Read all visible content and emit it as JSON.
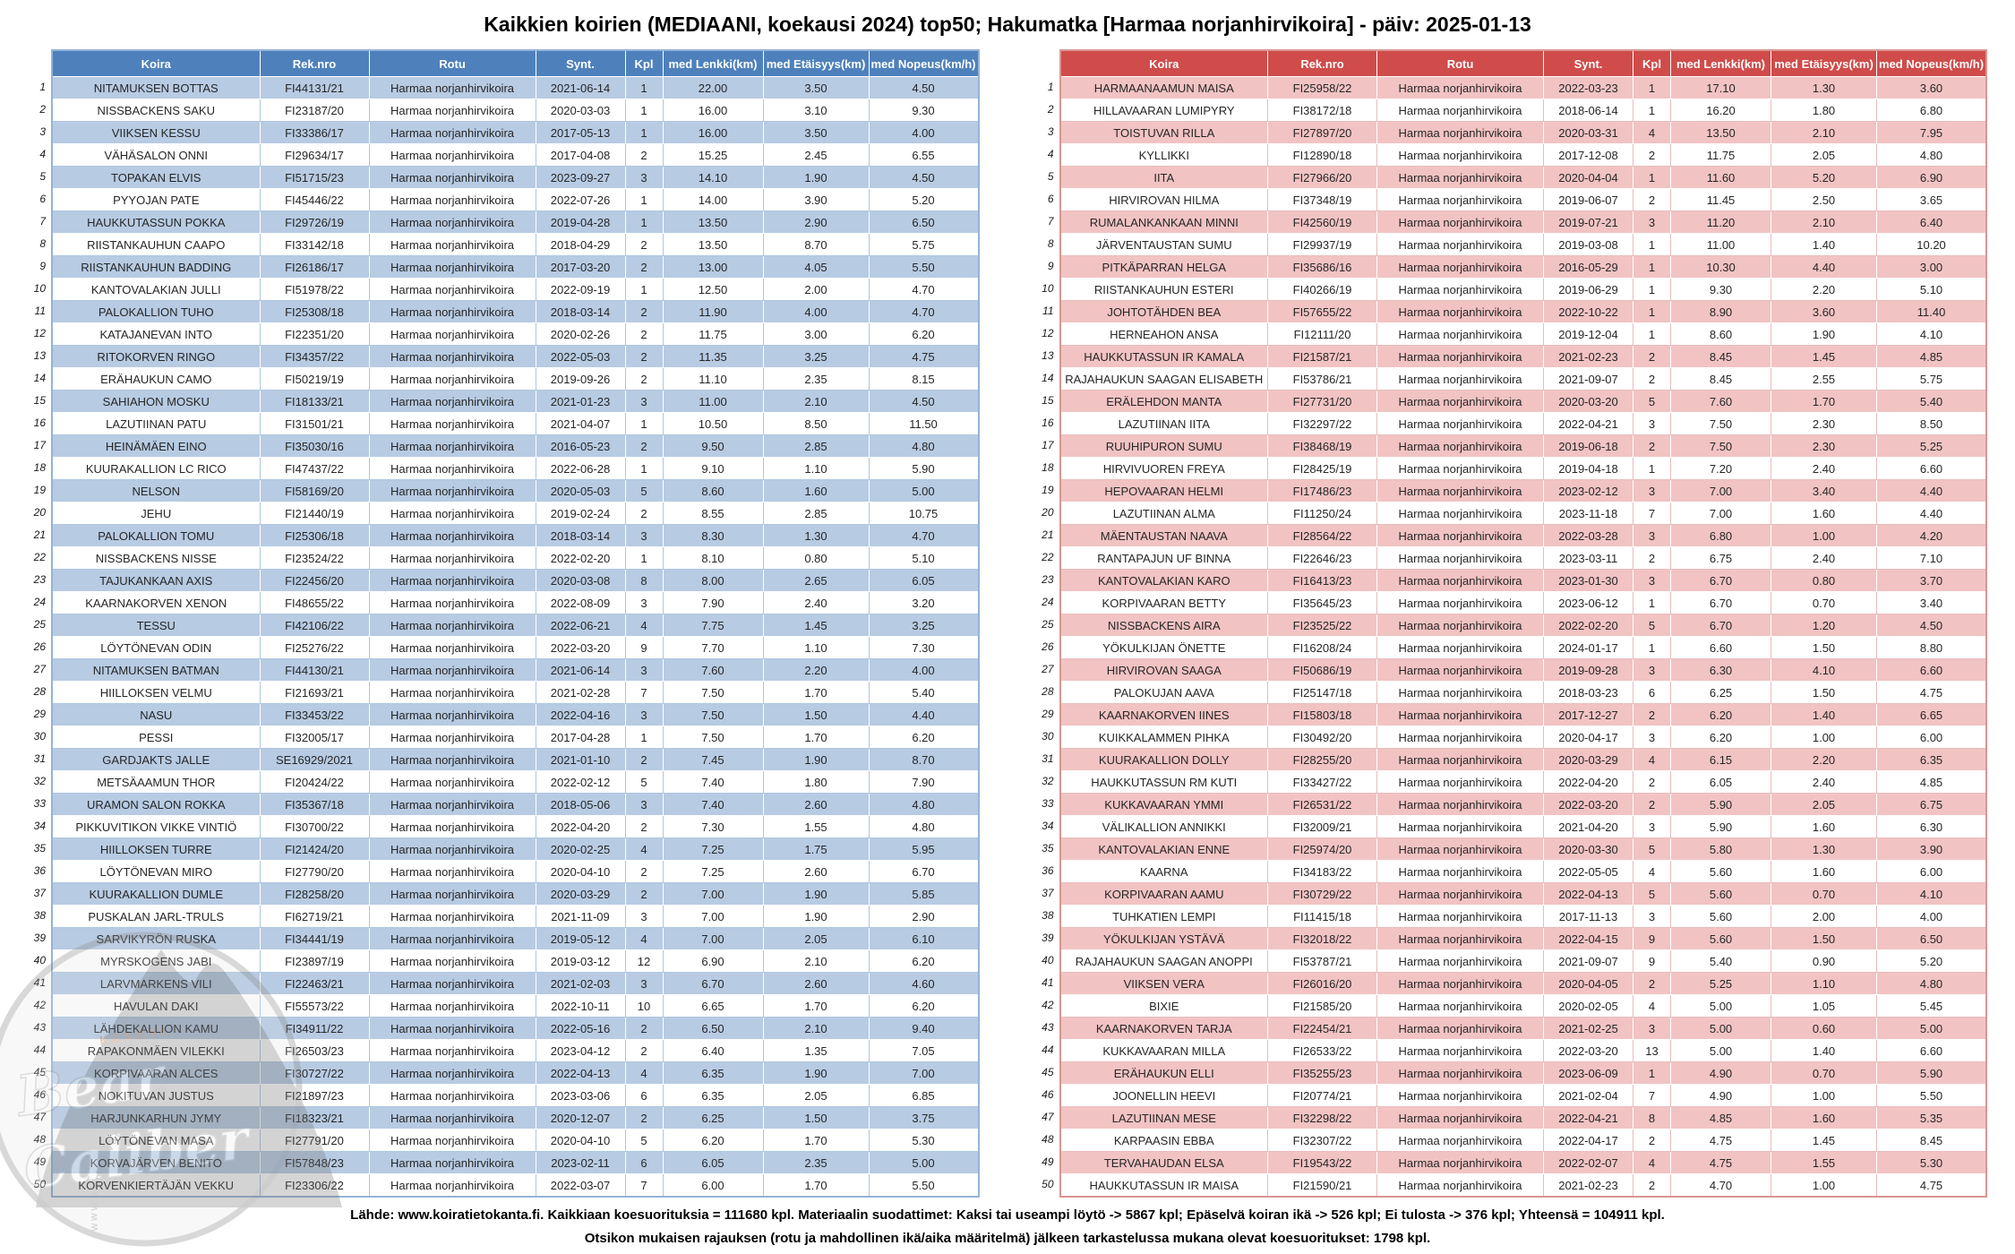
{
  "title": "Kaikkien koirien (MEDIAANI, koekausi 2024) top50; Hakumatka [Harmaa norjanhirvikoira] - päiv: 2025-01-13",
  "columns": [
    "Koira",
    "Rek.nro",
    "Rotu",
    "Synt.",
    "Kpl",
    "med Lenkki(km)",
    "med Etäisyys(km)",
    "med Nopeus(km/h)"
  ],
  "breed": "Harmaa norjanhirvikoira",
  "left_table": {
    "accent": "#4E81BC",
    "row_tint": "#B7CBE3",
    "rows": [
      [
        "NITAMUKSEN BOTTAS",
        "FI44131/21",
        "2021-06-14",
        "1",
        "22.00",
        "3.50",
        "4.50"
      ],
      [
        "NISSBACKENS SAKU",
        "FI23187/20",
        "2020-03-03",
        "1",
        "16.00",
        "3.10",
        "9.30"
      ],
      [
        "VIIKSEN KESSU",
        "FI33386/17",
        "2017-05-13",
        "1",
        "16.00",
        "3.50",
        "4.00"
      ],
      [
        "VÄHÄSALON ONNI",
        "FI29634/17",
        "2017-04-08",
        "2",
        "15.25",
        "2.45",
        "6.55"
      ],
      [
        "TOPAKAN ELVIS",
        "FI51715/23",
        "2023-09-27",
        "3",
        "14.10",
        "1.90",
        "4.50"
      ],
      [
        "PYYOJAN PATE",
        "FI45446/22",
        "2022-07-26",
        "1",
        "14.00",
        "3.90",
        "5.20"
      ],
      [
        "HAUKKUTASSUN POKKA",
        "FI29726/19",
        "2019-04-28",
        "1",
        "13.50",
        "2.90",
        "6.50"
      ],
      [
        "RIISTANKAUHUN CAAPO",
        "FI33142/18",
        "2018-04-29",
        "2",
        "13.50",
        "8.70",
        "5.75"
      ],
      [
        "RIISTANKAUHUN BADDING",
        "FI26186/17",
        "2017-03-20",
        "2",
        "13.00",
        "4.05",
        "5.50"
      ],
      [
        "KANTOVALAKIAN JULLI",
        "FI51978/22",
        "2022-09-19",
        "1",
        "12.50",
        "2.00",
        "4.70"
      ],
      [
        "PALOKALLION TUHO",
        "FI25308/18",
        "2018-03-14",
        "2",
        "11.90",
        "4.00",
        "4.70"
      ],
      [
        "KATAJANEVAN INTO",
        "FI22351/20",
        "2020-02-26",
        "2",
        "11.75",
        "3.00",
        "6.20"
      ],
      [
        "RITOKORVEN RINGO",
        "FI34357/22",
        "2022-05-03",
        "2",
        "11.35",
        "3.25",
        "4.75"
      ],
      [
        "ERÄHAUKUN CAMO",
        "FI50219/19",
        "2019-09-26",
        "2",
        "11.10",
        "2.35",
        "8.15"
      ],
      [
        "SAHIAHON MOSKU",
        "FI18133/21",
        "2021-01-23",
        "3",
        "11.00",
        "2.10",
        "4.50"
      ],
      [
        "LAZUTIINAN PATU",
        "FI31501/21",
        "2021-04-07",
        "1",
        "10.50",
        "8.50",
        "11.50"
      ],
      [
        "HEINÄMÄEN EINO",
        "FI35030/16",
        "2016-05-23",
        "2",
        "9.50",
        "2.85",
        "4.80"
      ],
      [
        "KUURAKALLION LC RICO",
        "FI47437/22",
        "2022-06-28",
        "1",
        "9.10",
        "1.10",
        "5.90"
      ],
      [
        "NELSON",
        "FI58169/20",
        "2020-05-03",
        "5",
        "8.60",
        "1.60",
        "5.00"
      ],
      [
        "JEHU",
        "FI21440/19",
        "2019-02-24",
        "2",
        "8.55",
        "2.85",
        "10.75"
      ],
      [
        "PALOKALLION TOMU",
        "FI25306/18",
        "2018-03-14",
        "3",
        "8.30",
        "1.30",
        "4.70"
      ],
      [
        "NISSBACKENS NISSE",
        "FI23524/22",
        "2022-02-20",
        "1",
        "8.10",
        "0.80",
        "5.10"
      ],
      [
        "TAJUKANKAAN AXIS",
        "FI22456/20",
        "2020-03-08",
        "8",
        "8.00",
        "2.65",
        "6.05"
      ],
      [
        "KAARNAKORVEN XENON",
        "FI48655/22",
        "2022-08-09",
        "3",
        "7.90",
        "2.40",
        "3.20"
      ],
      [
        "TESSU",
        "FI42106/22",
        "2022-06-21",
        "4",
        "7.75",
        "1.45",
        "3.25"
      ],
      [
        "LÖYTÖNEVAN ODIN",
        "FI25276/22",
        "2022-03-20",
        "9",
        "7.70",
        "1.10",
        "7.30"
      ],
      [
        "NITAMUKSEN BATMAN",
        "FI44130/21",
        "2021-06-14",
        "3",
        "7.60",
        "2.20",
        "4.00"
      ],
      [
        "HIILLOKSEN VELMU",
        "FI21693/21",
        "2021-02-28",
        "7",
        "7.50",
        "1.70",
        "5.40"
      ],
      [
        "NASU",
        "FI33453/22",
        "2022-04-16",
        "3",
        "7.50",
        "1.50",
        "4.40"
      ],
      [
        "PESSI",
        "FI32005/17",
        "2017-04-28",
        "1",
        "7.50",
        "1.70",
        "6.20"
      ],
      [
        "GARDJAKTS JALLE",
        "SE16929/2021",
        "2021-01-10",
        "2",
        "7.45",
        "1.90",
        "8.70"
      ],
      [
        "METSÄAAMUN THOR",
        "FI20424/22",
        "2022-02-12",
        "5",
        "7.40",
        "1.80",
        "7.90"
      ],
      [
        "URAMON SALON ROKKA",
        "FI35367/18",
        "2018-05-06",
        "3",
        "7.40",
        "2.60",
        "4.80"
      ],
      [
        "PIKKUVITIKON VIKKE VINTIÖ",
        "FI30700/22",
        "2022-04-20",
        "2",
        "7.30",
        "1.55",
        "4.80"
      ],
      [
        "HIILLOKSEN TURRE",
        "FI21424/20",
        "2020-02-25",
        "4",
        "7.25",
        "1.75",
        "5.95"
      ],
      [
        "LÖYTÖNEVAN MIRO",
        "FI27790/20",
        "2020-04-10",
        "2",
        "7.25",
        "2.60",
        "6.70"
      ],
      [
        "KUURAKALLION DUMLE",
        "FI28258/20",
        "2020-03-29",
        "2",
        "7.00",
        "1.90",
        "5.85"
      ],
      [
        "PUSKALAN JARL-TRULS",
        "FI62719/21",
        "2021-11-09",
        "3",
        "7.00",
        "1.90",
        "2.90"
      ],
      [
        "SARVIKYRÖN RUSKA",
        "FI34441/19",
        "2019-05-12",
        "4",
        "7.00",
        "2.05",
        "6.10"
      ],
      [
        "MYRSKOGENS JABI",
        "FI23897/19",
        "2019-03-12",
        "12",
        "6.90",
        "2.10",
        "6.20"
      ],
      [
        "LARVMARKENS VILI",
        "FI22463/21",
        "2021-02-03",
        "3",
        "6.70",
        "2.60",
        "4.60"
      ],
      [
        "HAVULAN DAKI",
        "FI55573/22",
        "2022-10-11",
        "10",
        "6.65",
        "1.70",
        "6.20"
      ],
      [
        "LÄHDEKALLION KAMU",
        "FI34911/22",
        "2022-05-16",
        "2",
        "6.50",
        "2.10",
        "9.40"
      ],
      [
        "RAPAKONMÄEN VILEKKI",
        "FI26503/23",
        "2023-04-12",
        "2",
        "6.40",
        "1.35",
        "7.05"
      ],
      [
        "KORPIVAARAN ALCES",
        "FI30727/22",
        "2022-04-13",
        "4",
        "6.35",
        "1.90",
        "7.00"
      ],
      [
        "NOKITUVAN JUSTUS",
        "FI21897/23",
        "2023-03-06",
        "6",
        "6.35",
        "2.05",
        "6.85"
      ],
      [
        "HARJUNKARHUN JYMY",
        "FI18323/21",
        "2020-12-07",
        "2",
        "6.25",
        "1.50",
        "3.75"
      ],
      [
        "LÖYTÖNEVAN MASA",
        "FI27791/20",
        "2020-04-10",
        "5",
        "6.20",
        "1.70",
        "5.30"
      ],
      [
        "KORVAJÄRVEN BENITO",
        "FI57848/23",
        "2023-02-11",
        "6",
        "6.05",
        "2.35",
        "5.00"
      ],
      [
        "KORVENKIERTÄJÄN VEKKU",
        "FI23306/22",
        "2022-03-07",
        "7",
        "6.00",
        "1.70",
        "5.50"
      ]
    ]
  },
  "right_table": {
    "accent": "#CF4C4A",
    "row_tint": "#F2C3C3",
    "rows": [
      [
        "HARMAANAAMUN MAISA",
        "FI25958/22",
        "2022-03-23",
        "1",
        "17.10",
        "1.30",
        "3.60"
      ],
      [
        "HILLAVAARAN LUMIPYRY",
        "FI38172/18",
        "2018-06-14",
        "1",
        "16.20",
        "1.80",
        "6.80"
      ],
      [
        "TOISTUVAN RILLA",
        "FI27897/20",
        "2020-03-31",
        "4",
        "13.50",
        "2.10",
        "7.95"
      ],
      [
        "KYLLIKKI",
        "FI12890/18",
        "2017-12-08",
        "2",
        "11.75",
        "2.05",
        "4.80"
      ],
      [
        "IITA",
        "FI27966/20",
        "2020-04-04",
        "1",
        "11.60",
        "5.20",
        "6.90"
      ],
      [
        "HIRVIROVAN HILMA",
        "FI37348/19",
        "2019-06-07",
        "2",
        "11.45",
        "2.50",
        "3.65"
      ],
      [
        "RUMALANKANKAAN MINNI",
        "FI42560/19",
        "2019-07-21",
        "3",
        "11.20",
        "2.10",
        "6.40"
      ],
      [
        "JÄRVENTAUSTAN SUMU",
        "FI29937/19",
        "2019-03-08",
        "1",
        "11.00",
        "1.40",
        "10.20"
      ],
      [
        "PITKÄPARRAN HELGA",
        "FI35686/16",
        "2016-05-29",
        "1",
        "10.30",
        "4.40",
        "3.00"
      ],
      [
        "RIISTANKAUHUN ESTERI",
        "FI40266/19",
        "2019-06-29",
        "1",
        "9.30",
        "2.20",
        "5.10"
      ],
      [
        "JOHTOTÄHDEN BEA",
        "FI57655/22",
        "2022-10-22",
        "1",
        "8.90",
        "3.60",
        "11.40"
      ],
      [
        "HERNEAHON ANSA",
        "FI12111/20",
        "2019-12-04",
        "1",
        "8.60",
        "1.90",
        "4.10"
      ],
      [
        "HAUKKUTASSUN IR KAMALA",
        "FI21587/21",
        "2021-02-23",
        "2",
        "8.45",
        "1.45",
        "4.85"
      ],
      [
        "RAJAHAUKUN SAAGAN ELISABETH",
        "FI53786/21",
        "2021-09-07",
        "2",
        "8.45",
        "2.55",
        "5.75"
      ],
      [
        "ERÄLEHDON MANTA",
        "FI27731/20",
        "2020-03-20",
        "5",
        "7.60",
        "1.70",
        "5.40"
      ],
      [
        "LAZUTIINAN IITA",
        "FI32297/22",
        "2022-04-21",
        "3",
        "7.50",
        "2.30",
        "8.50"
      ],
      [
        "RUUHIPURON SUMU",
        "FI38468/19",
        "2019-06-18",
        "2",
        "7.50",
        "2.30",
        "5.25"
      ],
      [
        "HIRVIVUOREN FREYA",
        "FI28425/19",
        "2019-04-18",
        "1",
        "7.20",
        "2.40",
        "6.60"
      ],
      [
        "HEPOVAARAN HELMI",
        "FI17486/23",
        "2023-02-12",
        "3",
        "7.00",
        "3.40",
        "4.40"
      ],
      [
        "LAZUTIINAN ALMA",
        "FI11250/24",
        "2023-11-18",
        "7",
        "7.00",
        "1.60",
        "4.40"
      ],
      [
        "MÄENTAUSTAN NAAVA",
        "FI28564/22",
        "2022-03-28",
        "3",
        "6.80",
        "1.00",
        "4.20"
      ],
      [
        "RANTAPAJUN UF BINNA",
        "FI22646/23",
        "2023-03-11",
        "2",
        "6.75",
        "2.40",
        "7.10"
      ],
      [
        "KANTOVALAKIAN KARO",
        "FI16413/23",
        "2023-01-30",
        "3",
        "6.70",
        "0.80",
        "3.70"
      ],
      [
        "KORPIVAARAN BETTY",
        "FI35645/23",
        "2023-06-12",
        "1",
        "6.70",
        "0.70",
        "3.40"
      ],
      [
        "NISSBACKENS AIRA",
        "FI23525/22",
        "2022-02-20",
        "5",
        "6.70",
        "1.20",
        "4.50"
      ],
      [
        "YÖKULKIJAN ÖNETTE",
        "FI16208/24",
        "2024-01-17",
        "1",
        "6.60",
        "1.50",
        "8.80"
      ],
      [
        "HIRVIROVAN SAAGA",
        "FI50686/19",
        "2019-09-28",
        "3",
        "6.30",
        "4.10",
        "6.60"
      ],
      [
        "PALOKUJAN AAVA",
        "FI25147/18",
        "2018-03-23",
        "6",
        "6.25",
        "1.50",
        "4.75"
      ],
      [
        "KAARNAKORVEN IINES",
        "FI15803/18",
        "2017-12-27",
        "2",
        "6.20",
        "1.40",
        "6.65"
      ],
      [
        "KUIKKALAMMEN PIHKA",
        "FI30492/20",
        "2020-04-17",
        "3",
        "6.20",
        "1.00",
        "6.00"
      ],
      [
        "KUURAKALLION DOLLY",
        "FI28255/20",
        "2020-03-29",
        "4",
        "6.15",
        "2.20",
        "6.35"
      ],
      [
        "HAUKKUTASSUN RM KUTI",
        "FI33427/22",
        "2022-04-20",
        "2",
        "6.05",
        "2.40",
        "4.85"
      ],
      [
        "KUKKAVAARAN YMMI",
        "FI26531/22",
        "2022-03-20",
        "2",
        "5.90",
        "2.05",
        "6.75"
      ],
      [
        "VÄLIKALLION ANNIKKI",
        "FI32009/21",
        "2021-04-20",
        "3",
        "5.90",
        "1.60",
        "6.30"
      ],
      [
        "KANTOVALAKIAN ENNE",
        "FI25974/20",
        "2020-03-30",
        "5",
        "5.80",
        "1.30",
        "3.90"
      ],
      [
        "KAARNA",
        "FI34183/22",
        "2022-05-05",
        "4",
        "5.60",
        "1.60",
        "6.00"
      ],
      [
        "KORPIVAARAN AAMU",
        "FI30729/22",
        "2022-04-13",
        "5",
        "5.60",
        "0.70",
        "4.10"
      ],
      [
        "TUHKATIEN LEMPI",
        "FI11415/18",
        "2017-11-13",
        "3",
        "5.60",
        "2.00",
        "4.00"
      ],
      [
        "YÖKULKIJAN YSTÄVÄ",
        "FI32018/22",
        "2022-04-15",
        "9",
        "5.60",
        "1.50",
        "6.50"
      ],
      [
        "RAJAHAUKUN SAAGAN ANOPPI",
        "FI53787/21",
        "2021-09-07",
        "9",
        "5.40",
        "0.90",
        "5.20"
      ],
      [
        "VIIKSEN VERA",
        "FI26016/20",
        "2020-04-05",
        "2",
        "5.25",
        "1.10",
        "4.80"
      ],
      [
        "BIXIE",
        "FI21585/20",
        "2020-02-05",
        "4",
        "5.00",
        "1.05",
        "5.45"
      ],
      [
        "KAARNAKORVEN TARJA",
        "FI22454/21",
        "2021-02-25",
        "3",
        "5.00",
        "0.60",
        "5.00"
      ],
      [
        "KUKKAVAARAN MILLA",
        "FI26533/22",
        "2022-03-20",
        "13",
        "5.00",
        "1.40",
        "6.60"
      ],
      [
        "ERÄHAUKUN ELLI",
        "FI35255/23",
        "2023-06-09",
        "1",
        "4.90",
        "0.70",
        "5.90"
      ],
      [
        "JOONELLIN HEEVI",
        "FI20774/21",
        "2021-02-04",
        "7",
        "4.90",
        "1.00",
        "5.50"
      ],
      [
        "LAZUTIINAN MESE",
        "FI32298/22",
        "2022-04-21",
        "8",
        "4.85",
        "1.60",
        "5.35"
      ],
      [
        "KARPAASIN EBBA",
        "FI32307/22",
        "2022-04-17",
        "2",
        "4.75",
        "1.45",
        "8.45"
      ],
      [
        "TERVAHAUDAN ELSA",
        "FI19543/22",
        "2022-02-07",
        "4",
        "4.75",
        "1.55",
        "5.30"
      ],
      [
        "HAUKKUTASSUN IR MAISA",
        "FI21590/21",
        "2021-02-23",
        "2",
        "4.70",
        "1.00",
        "4.75"
      ]
    ]
  },
  "footer": {
    "line1": "Lähde: www.koiratietokanta.fi. Kaikkiaan koesuorituksia = 111680 kpl. Materiaalin suodattimet: Kaksi tai useampi löytö -> 5867 kpl; Epäselvä koiran ikä -> 526 kpl; Ei tulosta -> 376 kpl; Yhteensä = 104911 kpl.",
    "line2": "Otsikon mukaisen rajauksen (rotu ja mahdollinen ikä/aika määritelmä) jälkeen tarkastelussa mukana olevat koesuoritukset: 1798 kpl."
  },
  "watermark": {
    "kennel": "KENNEL",
    "name_line1": "Bear",
    "name_line2": "Caliber",
    "website": "www.karhunvartijan.com"
  }
}
